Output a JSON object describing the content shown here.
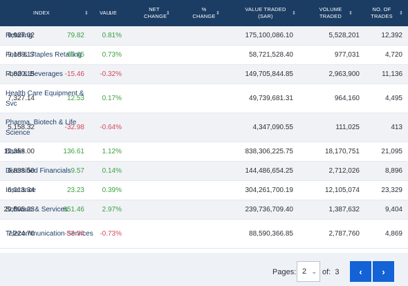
{
  "columns": [
    {
      "label": "INDEX"
    },
    {
      "label": "VALUE"
    },
    {
      "label": "NET CHANGE"
    },
    {
      "label": "% CHANGE"
    },
    {
      "label": "VALUE TRADED (SAR)"
    },
    {
      "label": "VOLUME TRADED"
    },
    {
      "label": "NO. OF TRADES"
    }
  ],
  "sort_icon": "⇕",
  "rows": [
    {
      "name": "Retailing",
      "value": "9,927.02",
      "net": "79.82",
      "pct": "0.81%",
      "traded": "175,100,086.10",
      "volume": "5,528,201",
      "trades": "12,392",
      "dir": "pos"
    },
    {
      "name": "Food & Staples Retailing",
      "value": "9,188.17",
      "net": "66.65",
      "pct": "0.73%",
      "traded": "58,721,528.40",
      "volume": "977,031",
      "trades": "4,720",
      "dir": "pos"
    },
    {
      "name": "Food & Beverages",
      "value": "4,820.15",
      "net": "-15.46",
      "pct": "-0.32%",
      "traded": "149,705,844.85",
      "volume": "2,963,900",
      "trades": "11,136",
      "dir": "neg"
    },
    {
      "name": "Health Care Equipment & Svc",
      "value": "7,327.14",
      "net": "12.53",
      "pct": "0.17%",
      "traded": "49,739,681.31",
      "volume": "964,160",
      "trades": "4,495",
      "dir": "pos"
    },
    {
      "name": "Pharma, Biotech & Life Science",
      "value": "5,158.32",
      "net": "-32.98",
      "pct": "-0.64%",
      "traded": "4,347,090.55",
      "volume": "111,025",
      "trades": "413",
      "dir": "neg"
    },
    {
      "name": "Banks",
      "value": "12,358.00",
      "net": "136.61",
      "pct": "1.12%",
      "traded": "838,306,225.75",
      "volume": "18,170,751",
      "trades": "21,095",
      "dir": "pos"
    },
    {
      "name": "Diversified Financials",
      "value": "6,838.50",
      "net": "9.57",
      "pct": "0.14%",
      "traded": "144,486,654.25",
      "volume": "2,712,026",
      "trades": "8,896",
      "dir": "pos"
    },
    {
      "name": "Insurance",
      "value": "6,013.34",
      "net": "23.23",
      "pct": "0.39%",
      "traded": "304,261,700.19",
      "volume": "12,105,074",
      "trades": "23,329",
      "dir": "pos"
    },
    {
      "name": "Software & Services",
      "value": "29,505.23",
      "net": "851.46",
      "pct": "2.97%",
      "traded": "239,736,709.40",
      "volume": "1,387,632",
      "trades": "9,404",
      "dir": "pos"
    },
    {
      "name": "Telecommunication Services",
      "value": "7,224.70",
      "net": "-53.34",
      "pct": "-0.73%",
      "traded": "88,590,366.85",
      "volume": "2,787,760",
      "trades": "4,869",
      "dir": "neg"
    }
  ],
  "pagination": {
    "pages_label": "Pages:",
    "current_page": "2",
    "of_label": "of:",
    "total_pages": "3",
    "prev_icon": "‹",
    "next_icon": "›"
  },
  "colors": {
    "header_bg": "#1b3c63",
    "positive": "#3a9f3d",
    "negative": "#d4485a",
    "nav_button": "#1362d6"
  }
}
